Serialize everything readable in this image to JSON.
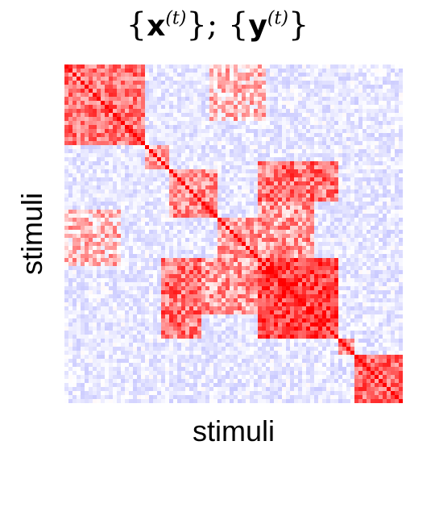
{
  "chart_data": {
    "type": "heatmap",
    "title": {
      "prefix": "{",
      "bold1": "x",
      "sup1": "(t)",
      "middle": "}; {",
      "bold2": "y",
      "sup2": "(t)",
      "suffix": "}"
    },
    "xlabel": "stimuli",
    "ylabel": "stimuli",
    "colormap": {
      "negative": "#3a3aff",
      "zero": "#ffffff",
      "positive": "#ff0000"
    },
    "value_range": [
      -1,
      1
    ],
    "diagonal_value": 1,
    "n_stimuli": 84,
    "blocks": [
      {
        "range": [
          0,
          20
        ],
        "value": 0.55
      },
      {
        "range": [
          20,
          26
        ],
        "value": 0.35
      },
      {
        "range": [
          26,
          38
        ],
        "value": 0.45
      },
      {
        "range": [
          38,
          48
        ],
        "value": 0.4
      },
      {
        "range": [
          48,
          68
        ],
        "value": 0.75
      },
      {
        "range": [
          68,
          72
        ],
        "value": 0.5
      },
      {
        "range": [
          72,
          84
        ],
        "value": 0.6
      }
    ],
    "cross_blocks": [
      {
        "rows": [
          24,
          34
        ],
        "cols": [
          48,
          68
        ],
        "value": 0.55
      },
      {
        "rows": [
          48,
          68
        ],
        "cols": [
          24,
          34
        ],
        "value": 0.55
      },
      {
        "rows": [
          34,
          48
        ],
        "cols": [
          48,
          62
        ],
        "value": 0.4
      },
      {
        "rows": [
          48,
          62
        ],
        "cols": [
          34,
          48
        ],
        "value": 0.4
      },
      {
        "rows": [
          0,
          14
        ],
        "cols": [
          36,
          50
        ],
        "value": 0.25
      },
      {
        "rows": [
          36,
          50
        ],
        "cols": [
          0,
          14
        ],
        "value": 0.25
      }
    ],
    "background_value": -0.12
  }
}
